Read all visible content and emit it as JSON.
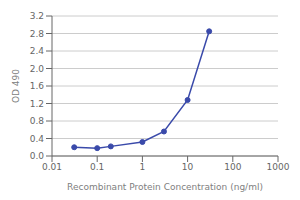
{
  "chart_data": {
    "type": "line",
    "xlabel": "Recombinant Protein Concentration (ng/ml)",
    "ylabel": "OD 490",
    "x": [
      0.031,
      0.1,
      0.2,
      1.0,
      3.0,
      10.0,
      30.0
    ],
    "values": [
      0.2,
      0.18,
      0.22,
      0.32,
      0.56,
      1.28,
      2.85
    ],
    "color": "#3a4aaa",
    "marker": "circle",
    "log": "x",
    "xlim": [
      0.01,
      1000
    ],
    "xticks": [
      0.01,
      0.1,
      1,
      10,
      100,
      1000
    ],
    "ylim": [
      0,
      3.2
    ],
    "yticks": [
      {
        "value": 0,
        "label": "0.0"
      },
      0.4,
      0.8,
      1.2,
      1.6,
      {
        "value": 2,
        "label": "2.0"
      },
      2.4,
      2.8,
      3.2
    ],
    "grid": true
  }
}
